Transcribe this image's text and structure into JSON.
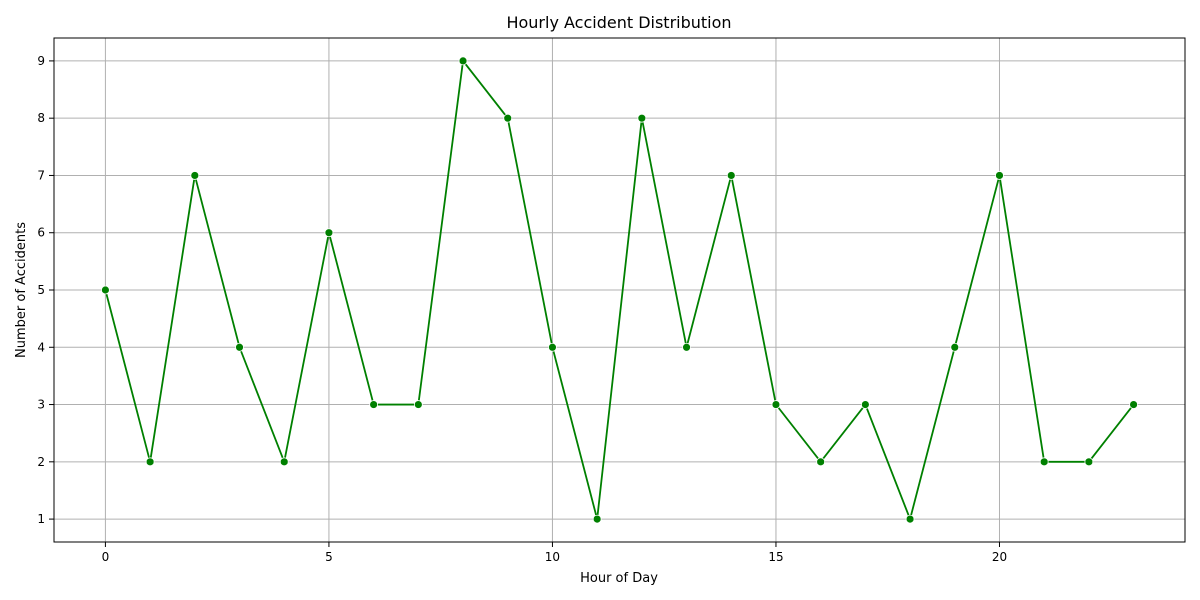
{
  "chart_data": {
    "type": "line",
    "title": "Hourly Accident Distribution",
    "xlabel": "Hour of Day",
    "ylabel": "Number of Accidents",
    "x": [
      0,
      1,
      2,
      3,
      4,
      5,
      6,
      7,
      8,
      9,
      10,
      11,
      12,
      13,
      14,
      15,
      16,
      17,
      18,
      19,
      20,
      21,
      22,
      23
    ],
    "series": [
      {
        "values": [
          5,
          2,
          7,
          4,
          2,
          6,
          3,
          3,
          9,
          8,
          4,
          1,
          8,
          4,
          7,
          3,
          2,
          3,
          1,
          4,
          7,
          2,
          2,
          3
        ],
        "color": "#008000"
      }
    ],
    "xlim": [
      -1.15,
      24.15
    ],
    "ylim": [
      0.6,
      9.4
    ],
    "xticks": [
      0,
      5,
      10,
      15,
      20
    ],
    "yticks": [
      1,
      2,
      3,
      4,
      5,
      6,
      7,
      8,
      9
    ],
    "grid": true,
    "marker": "circle"
  }
}
